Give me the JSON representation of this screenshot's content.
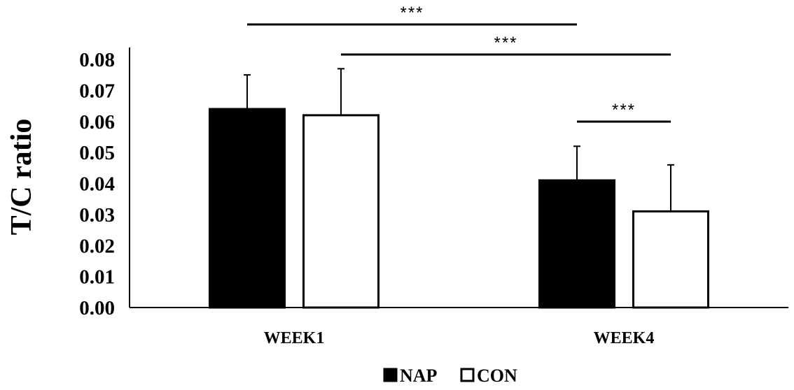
{
  "chart_data": {
    "type": "bar",
    "ylabel": "T/C ratio",
    "xlabel": "",
    "ylim": [
      0,
      0.08
    ],
    "yticks": [
      "0.00",
      "0.01",
      "0.02",
      "0.03",
      "0.04",
      "0.05",
      "0.06",
      "0.07",
      "0.08"
    ],
    "categories": [
      "WEEK1",
      "WEEK4"
    ],
    "series": [
      {
        "name": "NAP",
        "color": "#000000",
        "values": [
          0.064,
          0.041
        ],
        "errors": [
          0.011,
          0.011
        ]
      },
      {
        "name": "CON",
        "color": "#ffffff",
        "values": [
          0.062,
          0.031
        ],
        "errors": [
          0.015,
          0.015
        ]
      }
    ],
    "significance": [
      {
        "label": "***",
        "from": {
          "category": "WEEK1",
          "series": "NAP"
        },
        "to": {
          "category": "WEEK4",
          "series": "NAP"
        }
      },
      {
        "label": "***",
        "from": {
          "category": "WEEK1",
          "series": "CON"
        },
        "to": {
          "category": "WEEK4",
          "series": "CON"
        }
      },
      {
        "label": "***",
        "from": {
          "category": "WEEK4",
          "series": "NAP"
        },
        "to": {
          "category": "WEEK4",
          "series": "CON"
        }
      }
    ],
    "legend": "bottom",
    "grid": false
  }
}
